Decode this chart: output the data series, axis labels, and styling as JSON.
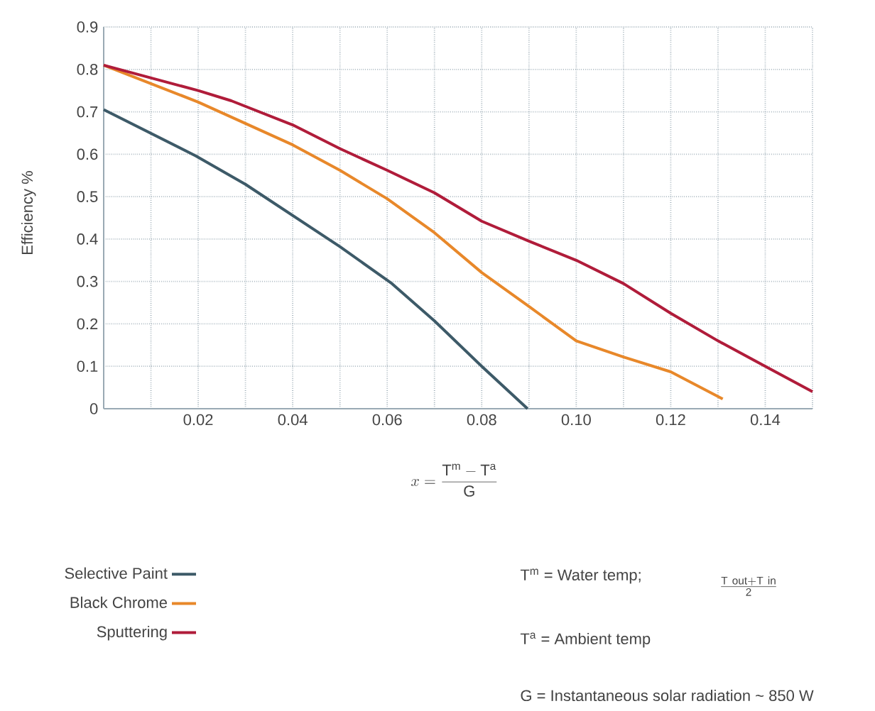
{
  "chart_data": {
    "type": "line",
    "xlabel": "x = \\frac{\\mathrm{T^{m} - T^{a}}}{\\mathrm{G}}",
    "ylabel": "Efficiency %",
    "annotations": [
      "T$^{m}$ = Water temp;",
      "\\frac{\\mathrm{T\\ out + T\\ in}}{\\mathrm{2}}",
      "T$^{a}$ = Ambient temp",
      "G = Instantaneous solar radiation ~ 850 W"
    ],
    "xlim": [
      0,
      0.15
    ],
    "ylim": [
      0,
      0.9
    ],
    "xticks": [
      {
        "value": 0.01,
        "label": null
      },
      0.02,
      {
        "value": 0.03,
        "label": null
      },
      0.04,
      {
        "value": 0.05,
        "label": null
      },
      0.06,
      {
        "value": 0.07,
        "label": null
      },
      0.08,
      {
        "value": 0.09,
        "label": null
      },
      {
        "value": 0.1,
        "label": "0.10"
      },
      {
        "value": 0.11,
        "label": null
      },
      0.12,
      {
        "value": 0.13,
        "label": null
      },
      0.14,
      {
        "value": 0.15,
        "label": null
      }
    ],
    "yticks": [
      0,
      0.1,
      0.2,
      0.3,
      0.4,
      0.5,
      0.6,
      0.7,
      0.8,
      0.9
    ],
    "grid": true,
    "legend": "bottom left",
    "marker": "none",
    "line_style": "solid",
    "series": [
      {
        "name": "Selective Paint",
        "color": "#3d5a68",
        "x": [
          0,
          0.0195,
          0.03,
          0.05,
          0.061,
          0.07,
          0.08,
          0.0897
        ],
        "values": [
          0.705,
          0.596,
          0.529,
          0.382,
          0.295,
          0.207,
          0.1,
          0
        ]
      },
      {
        "name": "Black Chrome",
        "color": "#e8882a",
        "x": [
          0,
          0.02,
          0.04,
          0.05,
          0.06,
          0.07,
          0.08,
          0.09,
          0.1,
          0.11,
          0.12,
          0.131
        ],
        "values": [
          0.81,
          0.723,
          0.622,
          0.562,
          0.495,
          0.415,
          0.321,
          0.241,
          0.16,
          0.122,
          0.087,
          0.023
        ]
      },
      {
        "name": "Sputtering",
        "color": "#b01c3a",
        "x": [
          0,
          0.02,
          0.027,
          0.04,
          0.05,
          0.06,
          0.07,
          0.08,
          0.09,
          0.1,
          0.11,
          0.12,
          0.13,
          0.14,
          0.15
        ],
        "values": [
          0.81,
          0.75,
          0.726,
          0.669,
          0.613,
          0.562,
          0.509,
          0.442,
          0.395,
          0.35,
          0.295,
          0.225,
          0.16,
          0.1,
          0.04
        ]
      }
    ]
  }
}
